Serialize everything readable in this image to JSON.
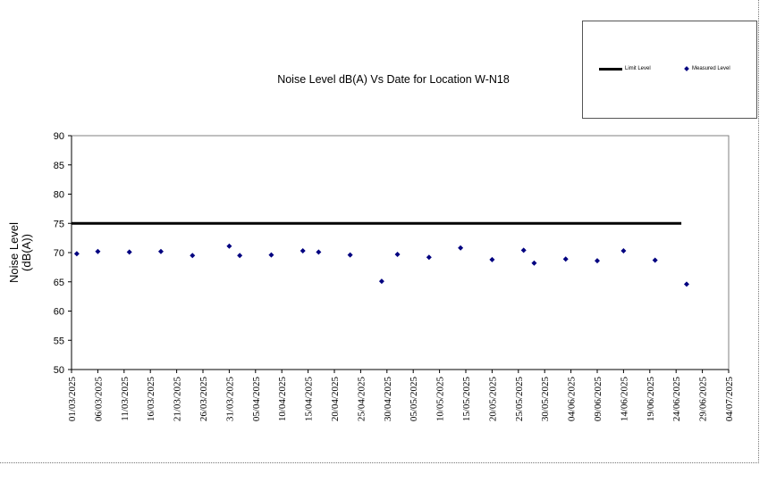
{
  "chart_data": {
    "type": "scatter",
    "title": "Noise Level dB(A) Vs Date for Location W-N18",
    "ylabel_lines": [
      "Noise Level",
      "(dB(A))"
    ],
    "xlabel": "",
    "ylim": [
      50,
      90
    ],
    "yticks": [
      50,
      55,
      60,
      65,
      70,
      75,
      80,
      85,
      90
    ],
    "xlim": [
      "2025-03-01",
      "2025-07-04"
    ],
    "xticks": [
      "01/03/2025",
      "06/03/2025",
      "11/03/2025",
      "16/03/2025",
      "21/03/2025",
      "26/03/2025",
      "31/03/2025",
      "05/04/2025",
      "10/04/2025",
      "15/04/2025",
      "20/04/2025",
      "25/04/2025",
      "30/04/2025",
      "05/05/2025",
      "10/05/2025",
      "15/05/2025",
      "20/05/2025",
      "25/05/2025",
      "30/05/2025",
      "04/06/2025",
      "09/06/2025",
      "14/06/2025",
      "19/06/2025",
      "24/06/2025",
      "29/06/2025",
      "04/07/2025"
    ],
    "legend_position": "top-right",
    "series": [
      {
        "name": "Limit Level",
        "type": "line",
        "color": "#000000",
        "x": [
          "2025-03-01",
          "2025-06-25"
        ],
        "y": [
          75,
          75
        ]
      },
      {
        "name": "Measured Level",
        "type": "scatter",
        "color": "#000080",
        "x": [
          "2025-03-02",
          "2025-03-06",
          "2025-03-12",
          "2025-03-18",
          "2025-03-24",
          "2025-03-31",
          "2025-04-02",
          "2025-04-08",
          "2025-04-14",
          "2025-04-17",
          "2025-04-23",
          "2025-04-29",
          "2025-05-02",
          "2025-05-08",
          "2025-05-14",
          "2025-05-20",
          "2025-05-26",
          "2025-05-28",
          "2025-06-03",
          "2025-06-09",
          "2025-06-14",
          "2025-06-20",
          "2025-06-26"
        ],
        "y": [
          69.8,
          70.2,
          70.1,
          70.2,
          69.5,
          71.1,
          69.5,
          69.6,
          70.3,
          70.1,
          69.6,
          65.1,
          69.7,
          69.2,
          70.8,
          68.8,
          70.4,
          68.2,
          68.9,
          68.6,
          70.3,
          68.7,
          64.6
        ]
      }
    ]
  }
}
